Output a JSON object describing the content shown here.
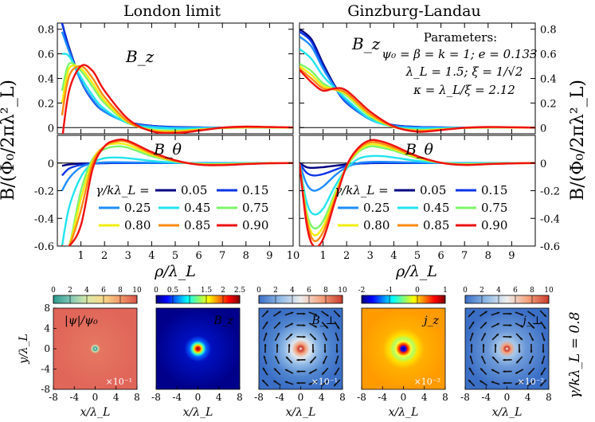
{
  "titles": {
    "left": "London limit",
    "right": "Ginzburg-Landau"
  },
  "axes": {
    "ylabel_left": "B/(Φ₀/2πλ²_L)",
    "ylabel_right": "B/(Φ₀/2πλ²_L)",
    "xlabel_left": "ρ/λ_L",
    "xlabel_right": "ρ/λ_L",
    "bottom_ylabel": "γ/kλ_L = 0.8"
  },
  "panel_labels": {
    "bz": "B_z",
    "btheta": "B_θ"
  },
  "parameters": {
    "heading": "Parameters:",
    "line1": "ψ₀ = β = k = 1;  e = 0.133",
    "line2": "λ_L = 1.5;  ξ = 1/√2",
    "line3": "κ = λ_L/ξ = 2.12"
  },
  "legend": {
    "prefix": "γ/kλ_L =",
    "entries": [
      {
        "label": "0.05",
        "color": "#000080"
      },
      {
        "label": "0.15",
        "color": "#0a34e6"
      },
      {
        "label": "0.25",
        "color": "#1e8cff"
      },
      {
        "label": "0.45",
        "color": "#22e4ee"
      },
      {
        "label": "0.75",
        "color": "#7cf56a"
      },
      {
        "label": "0.80",
        "color": "#f2ee10"
      },
      {
        "label": "0.85",
        "color": "#ff8a12"
      },
      {
        "label": "0.90",
        "color": "#ee1111"
      }
    ]
  },
  "ticks": {
    "x_left": [
      "1",
      "2",
      "3",
      "4",
      "5",
      "6",
      "7",
      "8",
      "9",
      "10"
    ],
    "x_right": [
      "1",
      "2",
      "3",
      "4",
      "5",
      "6",
      "7",
      "8",
      "9"
    ],
    "y_top": [
      "0.8",
      "0.6",
      "0.4",
      "0.2",
      "0"
    ],
    "y_bottom": [
      "0",
      "-0.2",
      "-0.4",
      "-0.6"
    ]
  },
  "maps": [
    {
      "label": "|ψ|/ψ₀",
      "scale": "×10⁻¹",
      "cbar_ticks": [
        "0",
        "2",
        "4",
        "6",
        "8",
        "10"
      ],
      "xlabel": "x/λ_L",
      "ylabel": "y/λ_L"
    },
    {
      "label": "B_z",
      "scale": "",
      "cbar_ticks": [
        "0",
        "0.5",
        "1",
        "1.5",
        "2",
        "2.5"
      ],
      "xlabel": "x/λ_L",
      "ylabel": ""
    },
    {
      "label": "B_⊥",
      "scale": "×10⁻¹",
      "cbar_ticks": [
        "0",
        "2",
        "4",
        "6",
        "8",
        "10"
      ],
      "xlabel": "x/λ_L",
      "ylabel": ""
    },
    {
      "label": "j_z",
      "scale": "×10⁻²",
      "cbar_ticks": [
        "-2",
        "-1",
        "0",
        "1"
      ],
      "xlabel": "x/λ_L",
      "ylabel": ""
    },
    {
      "label": "j_⊥",
      "scale": "×10⁻²",
      "cbar_ticks": [
        "0",
        "2",
        "4",
        "6",
        "8",
        "10"
      ],
      "xlabel": "x/λ_L",
      "ylabel": ""
    }
  ],
  "map_ticks": {
    "x": [
      "-8",
      "-4",
      "0",
      "4",
      "8"
    ],
    "y": [
      "8",
      "4",
      "0",
      "-4",
      "-8"
    ]
  },
  "chart_data": [
    {
      "type": "line",
      "panel": "London limit, B_z",
      "xlim": [
        0,
        10
      ],
      "ylim": [
        -0.05,
        0.85
      ],
      "x": [
        0.2,
        0.5,
        1,
        1.5,
        2,
        3,
        4,
        5,
        6,
        7,
        8,
        9,
        10
      ],
      "series": [
        {
          "name": "0.05",
          "values": [
            0.85,
            0.65,
            0.38,
            0.22,
            0.13,
            0.045,
            0.015,
            0.005,
            0.002,
            0,
            0,
            0,
            0
          ]
        },
        {
          "name": "0.15",
          "values": [
            0.85,
            0.64,
            0.38,
            0.22,
            0.13,
            0.044,
            0.014,
            0.004,
            0.001,
            0,
            0,
            0,
            0
          ]
        },
        {
          "name": "0.25",
          "values": [
            0.78,
            0.62,
            0.38,
            0.23,
            0.13,
            0.04,
            0.01,
            0.001,
            0,
            0,
            0,
            0,
            0
          ]
        },
        {
          "name": "0.45",
          "values": [
            0.6,
            0.58,
            0.41,
            0.26,
            0.15,
            0.035,
            0.002,
            -0.008,
            -0.006,
            -0.002,
            0,
            0,
            0
          ]
        },
        {
          "name": "0.75",
          "values": [
            0.3,
            0.52,
            0.46,
            0.33,
            0.2,
            0.04,
            -0.015,
            -0.024,
            -0.014,
            -0.004,
            0.001,
            0.001,
            0
          ]
        },
        {
          "name": "0.80",
          "values": [
            0.2,
            0.48,
            0.48,
            0.36,
            0.22,
            0.045,
            -0.02,
            -0.03,
            -0.016,
            -0.003,
            0.002,
            0.002,
            0
          ]
        },
        {
          "name": "0.85",
          "values": [
            0.1,
            0.42,
            0.5,
            0.4,
            0.25,
            0.05,
            -0.025,
            -0.036,
            -0.02,
            -0.002,
            0.004,
            0.003,
            0.001
          ]
        },
        {
          "name": "0.90",
          "values": [
            -0.1,
            0.3,
            0.5,
            0.46,
            0.3,
            0.07,
            -0.03,
            -0.045,
            -0.025,
            0,
            0.008,
            0.005,
            0.001
          ]
        }
      ]
    },
    {
      "type": "line",
      "panel": "Ginzburg-Landau, B_z",
      "xlim": [
        0,
        10
      ],
      "ylim": [
        -0.05,
        0.85
      ],
      "x": [
        0,
        0.5,
        1,
        1.5,
        2,
        3,
        4,
        5,
        6,
        7,
        8,
        9,
        10
      ],
      "series": [
        {
          "name": "0.05",
          "values": [
            0.8,
            0.72,
            0.52,
            0.34,
            0.21,
            0.07,
            0.02,
            0.006,
            0.002,
            0,
            0,
            0,
            0
          ]
        },
        {
          "name": "0.15",
          "values": [
            0.78,
            0.7,
            0.5,
            0.33,
            0.2,
            0.07,
            0.02,
            0.005,
            0.001,
            0,
            0,
            0,
            0
          ]
        },
        {
          "name": "0.25",
          "values": [
            0.74,
            0.66,
            0.48,
            0.33,
            0.21,
            0.065,
            0.015,
            0.002,
            0,
            0,
            0,
            0,
            0
          ]
        },
        {
          "name": "0.45",
          "values": [
            0.64,
            0.56,
            0.42,
            0.32,
            0.23,
            0.07,
            0.008,
            -0.006,
            -0.005,
            -0.002,
            0,
            0,
            0
          ]
        },
        {
          "name": "0.75",
          "values": [
            0.52,
            0.46,
            0.36,
            0.31,
            0.26,
            0.09,
            0.005,
            -0.018,
            -0.012,
            -0.003,
            0.001,
            0.001,
            0
          ]
        },
        {
          "name": "0.80",
          "values": [
            0.5,
            0.43,
            0.34,
            0.31,
            0.27,
            0.1,
            0.005,
            -0.022,
            -0.014,
            -0.003,
            0.002,
            0.001,
            0
          ]
        },
        {
          "name": "0.85",
          "values": [
            0.48,
            0.4,
            0.32,
            0.31,
            0.28,
            0.11,
            0.006,
            -0.027,
            -0.017,
            -0.002,
            0.003,
            0.002,
            0
          ]
        },
        {
          "name": "0.90",
          "values": [
            0.47,
            0.37,
            0.3,
            0.32,
            0.3,
            0.13,
            0.01,
            -0.033,
            -0.02,
            -0.001,
            0.005,
            0.003,
            0
          ]
        }
      ]
    },
    {
      "type": "line",
      "panel": "London limit, B_θ",
      "xlim": [
        0,
        10
      ],
      "ylim": [
        -0.6,
        0.2
      ],
      "x": [
        0.2,
        0.5,
        1,
        1.5,
        2,
        2.5,
        3,
        4,
        5,
        6,
        7,
        8,
        9,
        10
      ],
      "series": [
        {
          "name": "0.05",
          "values": [
            -0.02,
            -0.01,
            -0.004,
            -0.002,
            -0.001,
            0,
            0,
            0,
            0,
            0,
            0,
            0,
            0,
            0
          ]
        },
        {
          "name": "0.15",
          "values": [
            -0.09,
            -0.04,
            -0.013,
            -0.004,
            -0.001,
            0,
            0,
            0,
            0,
            0,
            0,
            0,
            0,
            0
          ]
        },
        {
          "name": "0.25",
          "values": [
            -0.2,
            -0.11,
            -0.03,
            -0.004,
            0.005,
            0.006,
            0.005,
            0.002,
            0,
            0,
            0,
            0,
            0,
            0
          ]
        },
        {
          "name": "0.45",
          "values": [
            -0.6,
            -0.32,
            -0.1,
            0,
            0.035,
            0.04,
            0.035,
            0.015,
            0.003,
            -0.002,
            -0.002,
            0,
            0,
            0
          ]
        },
        {
          "name": "0.75",
          "values": [
            -0.6,
            -0.6,
            -0.2,
            0.03,
            0.1,
            0.12,
            0.11,
            0.05,
            0.012,
            -0.006,
            -0.008,
            -0.004,
            -0.001,
            0
          ]
        },
        {
          "name": "0.80",
          "values": [
            -0.6,
            -0.6,
            -0.26,
            0.02,
            0.12,
            0.14,
            0.13,
            0.06,
            0.013,
            -0.008,
            -0.01,
            -0.005,
            -0.001,
            0
          ]
        },
        {
          "name": "0.85",
          "values": [
            -0.6,
            -0.6,
            -0.34,
            0,
            0.12,
            0.155,
            0.15,
            0.07,
            0.015,
            -0.01,
            -0.012,
            -0.006,
            -0.001,
            0
          ]
        },
        {
          "name": "0.90",
          "values": [
            -0.6,
            -0.6,
            -0.45,
            -0.04,
            0.12,
            0.165,
            0.16,
            0.08,
            0.02,
            -0.012,
            -0.015,
            -0.008,
            -0.002,
            0
          ]
        }
      ]
    },
    {
      "type": "line",
      "panel": "Ginzburg-Landau, B_θ",
      "xlim": [
        0,
        10
      ],
      "ylim": [
        -0.6,
        0.2
      ],
      "x": [
        0,
        0.3,
        0.6,
        1,
        1.5,
        2,
        2.5,
        3,
        3.5,
        4,
        5,
        6,
        7,
        8,
        9,
        10
      ],
      "series": [
        {
          "name": "0.05",
          "values": [
            0,
            -0.03,
            -0.035,
            -0.03,
            -0.02,
            -0.01,
            -0.004,
            -0.001,
            0,
            0,
            0,
            0,
            0,
            0,
            0,
            0
          ]
        },
        {
          "name": "0.15",
          "values": [
            0,
            -0.07,
            -0.09,
            -0.08,
            -0.05,
            -0.02,
            -0.005,
            0,
            0.001,
            0.001,
            0,
            0,
            0,
            0,
            0,
            0
          ]
        },
        {
          "name": "0.25",
          "values": [
            0,
            -0.15,
            -0.2,
            -0.17,
            -0.09,
            -0.03,
            0,
            0.008,
            0.009,
            0.007,
            0.003,
            0,
            0,
            0,
            0,
            0
          ]
        },
        {
          "name": "0.45",
          "values": [
            0,
            -0.28,
            -0.37,
            -0.33,
            -0.17,
            -0.04,
            0.03,
            0.05,
            0.05,
            0.04,
            0.015,
            0.002,
            -0.002,
            -0.001,
            0,
            0
          ]
        },
        {
          "name": "0.75",
          "values": [
            0,
            -0.35,
            -0.47,
            -0.42,
            -0.22,
            -0.03,
            0.08,
            0.12,
            0.11,
            0.09,
            0.035,
            0.002,
            -0.008,
            -0.005,
            -0.002,
            0
          ]
        },
        {
          "name": "0.80",
          "values": [
            0,
            -0.38,
            -0.52,
            -0.46,
            -0.24,
            -0.02,
            0.09,
            0.135,
            0.125,
            0.1,
            0.04,
            0.002,
            -0.01,
            -0.006,
            -0.002,
            0
          ]
        },
        {
          "name": "0.85",
          "values": [
            0,
            -0.4,
            -0.56,
            -0.5,
            -0.26,
            -0.02,
            0.1,
            0.15,
            0.14,
            0.11,
            0.045,
            0.002,
            -0.012,
            -0.007,
            -0.002,
            0
          ]
        },
        {
          "name": "0.90",
          "values": [
            0,
            -0.44,
            -0.6,
            -0.55,
            -0.28,
            -0.02,
            0.11,
            0.165,
            0.155,
            0.125,
            0.05,
            0.002,
            -0.014,
            -0.008,
            -0.003,
            0
          ]
        }
      ]
    }
  ]
}
